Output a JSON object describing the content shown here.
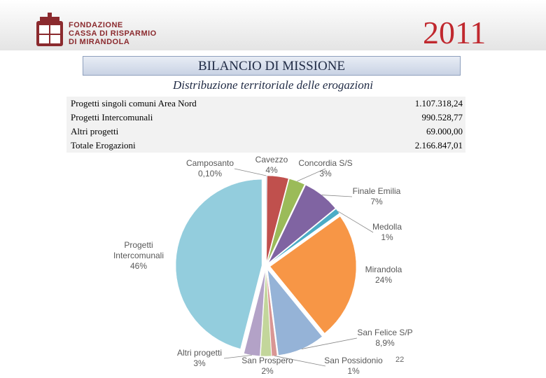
{
  "header": {
    "logo": [
      "FONDAZIONE",
      "CASSA DI RISPARMIO",
      "DI MIRANDOLA"
    ],
    "year": "2011",
    "banner": "BILANCIO DI MISSIONE",
    "subtitle": "Distribuzione territoriale delle erogazioni"
  },
  "table": {
    "rows": [
      [
        "Progetti  singoli comuni Area Nord",
        "1.107.318,24"
      ],
      [
        "Progetti Intercomunali",
        "990.528,77"
      ],
      [
        "Altri progetti",
        "69.000,00"
      ],
      [
        "Totale Erogazioni",
        "2.166.847,01"
      ]
    ]
  },
  "chart_data": {
    "type": "pie",
    "categories": [
      "Camposanto",
      "Cavezzo",
      "Concordia S/S",
      "Finale Emilia",
      "Medolla",
      "Mirandola",
      "San Felice S/P",
      "San Possidonio",
      "San Prospero",
      "Altri progetti",
      "Progetti Intercomunali"
    ],
    "values": [
      0.1,
      4,
      3,
      7,
      1,
      24,
      8.9,
      1,
      2,
      3,
      46
    ],
    "value_labels": [
      "0,10%",
      "4%",
      "3%",
      "7%",
      "1%",
      "24%",
      "8,9%",
      "1%",
      "2%",
      "3%",
      "46%"
    ],
    "colors": [
      "#4f81bd",
      "#c0504d",
      "#9bbb59",
      "#8064a2",
      "#4bacc6",
      "#f79646",
      "#95b3d7",
      "#d99694",
      "#c3d69b",
      "#b3a2c7",
      "#93cddd"
    ]
  },
  "footer": {
    "page": "22"
  }
}
